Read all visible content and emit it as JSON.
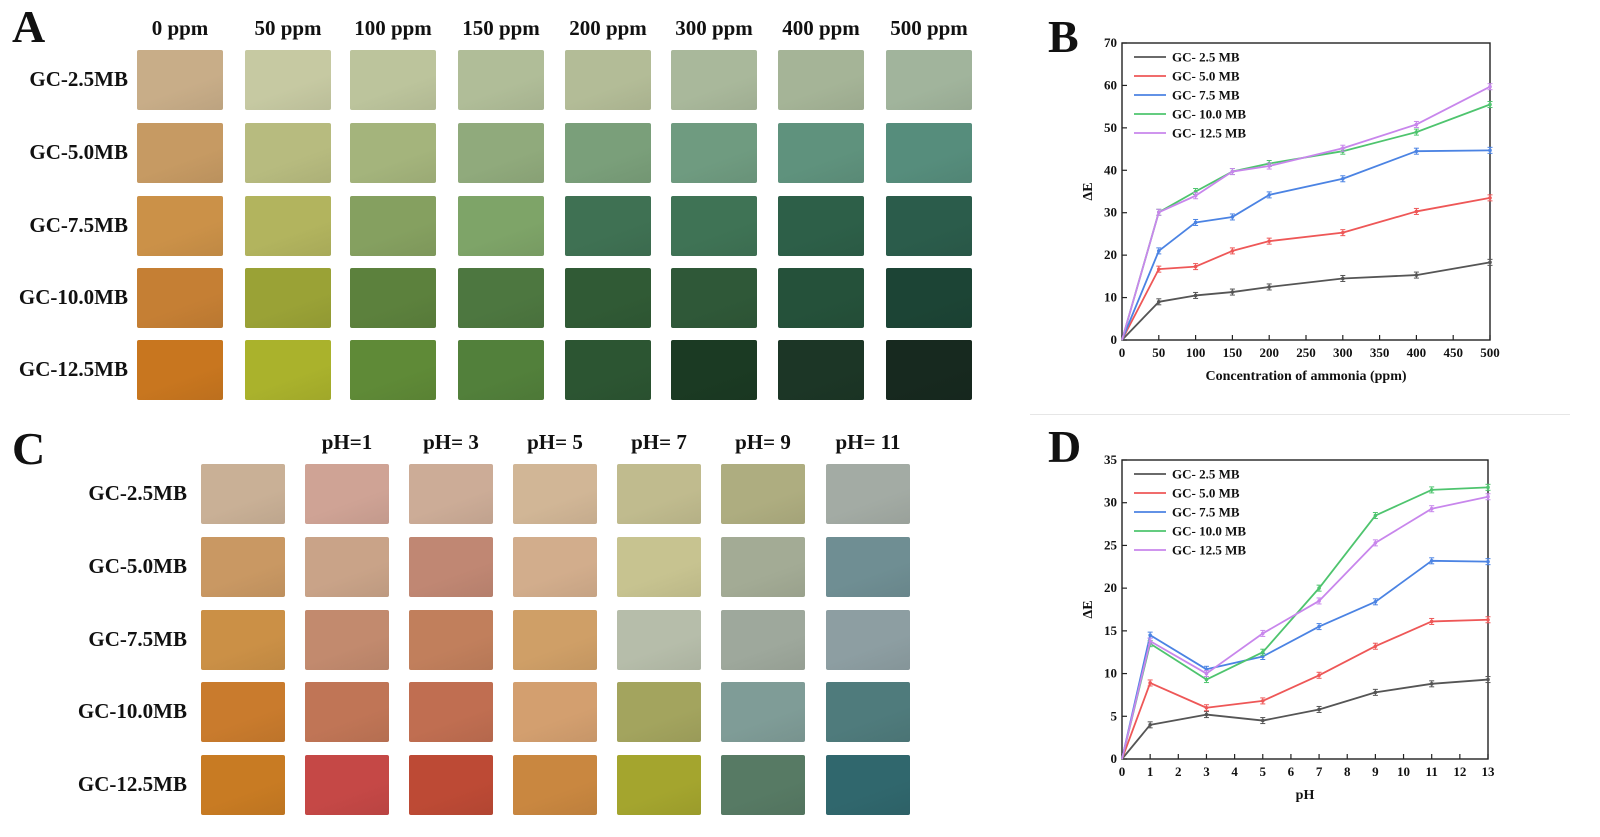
{
  "panelA": {
    "letter": "A",
    "columns": [
      "0 ppm",
      "50 ppm",
      "100 ppm",
      "150 ppm",
      "200 ppm",
      "300 ppm",
      "400 ppm",
      "500 ppm"
    ],
    "rows": [
      {
        "label": "GC-2.5MB",
        "colors": [
          "#c8ad88",
          "#c6c9a2",
          "#bcc49c",
          "#b0bd98",
          "#b3bc97",
          "#a9b89b",
          "#a5b497",
          "#a1b49c"
        ]
      },
      {
        "label": "GC-5.0MB",
        "colors": [
          "#c69a63",
          "#b7bb7f",
          "#a4b47c",
          "#90aa7c",
          "#7a9f7a",
          "#6f9b80",
          "#5f927d",
          "#568d7c"
        ]
      },
      {
        "label": "GC-7.5MB",
        "colors": [
          "#cb9148",
          "#b2b45e",
          "#85a060",
          "#7ea468",
          "#3f7153",
          "#3f7355",
          "#2d5f48",
          "#2b5c4b"
        ]
      },
      {
        "label": "GC-10.0MB",
        "colors": [
          "#c57f34",
          "#9aa236",
          "#5c813d",
          "#4d7740",
          "#305a35",
          "#2f5838",
          "#25513a",
          "#1c4435"
        ]
      },
      {
        "label": "GC-12.5MB",
        "colors": [
          "#c8761f",
          "#aab22c",
          "#5f8a37",
          "#52803b",
          "#2c5532",
          "#1b3a23",
          "#1c3626",
          "#17291f"
        ]
      }
    ]
  },
  "panelC": {
    "letter": "C",
    "columns": [
      "",
      "pH=1",
      "pH= 3",
      "pH= 5",
      "pH= 7",
      "pH= 9",
      "pH= 11"
    ],
    "rows": [
      {
        "label": "GC-2.5MB",
        "colors": [
          "#c9b096",
          "#cfa395",
          "#ccac97",
          "#d1b696",
          "#c0bb8e",
          "#aead80",
          "#a3aba4"
        ]
      },
      {
        "label": "GC-5.0MB",
        "colors": [
          "#c99863",
          "#c9a388",
          "#c08773",
          "#d2ad8c",
          "#c7c390",
          "#a3ab95",
          "#6f8e93"
        ]
      },
      {
        "label": "GC-7.5MB",
        "colors": [
          "#cb9046",
          "#c28a6e",
          "#c17f5c",
          "#cf9f67",
          "#b6bdaa",
          "#9ea89c",
          "#8d9ea2"
        ]
      },
      {
        "label": "GC-10.0MB",
        "colors": [
          "#c97b2d",
          "#c07556",
          "#c06e51",
          "#d39f6f",
          "#a3a45e",
          "#7f9c97",
          "#4f7b7c"
        ]
      },
      {
        "label": "GC-12.5MB",
        "colors": [
          "#c87b23",
          "#c54846",
          "#bd4a35",
          "#c98740",
          "#a4a52e",
          "#577a64",
          "#30676d"
        ]
      }
    ]
  },
  "chart_data": [
    {
      "panel": "B",
      "type": "line",
      "xlabel": "Concentration of ammonia (ppm)",
      "ylabel": "ΔE",
      "xlim": [
        0,
        500
      ],
      "ylim": [
        0,
        70
      ],
      "xticks": [
        0,
        50,
        100,
        150,
        200,
        250,
        300,
        350,
        400,
        450,
        500
      ],
      "yticks": [
        0,
        10,
        20,
        30,
        40,
        50,
        60,
        70
      ],
      "legend_position": "top-left",
      "x": [
        0,
        50,
        100,
        150,
        200,
        300,
        400,
        500
      ],
      "series": [
        {
          "name": "GC- 2.5 MB",
          "color": "#555555",
          "values": [
            0,
            9,
            10.5,
            11.3,
            12.5,
            14.5,
            15.3,
            18.3
          ]
        },
        {
          "name": "GC- 5.0 MB",
          "color": "#ee5757",
          "values": [
            0,
            16.7,
            17.3,
            21,
            23.3,
            25.3,
            30.3,
            33.5
          ]
        },
        {
          "name": "GC- 7.5 MB",
          "color": "#4b83e3",
          "values": [
            0,
            21,
            27.7,
            29,
            34.2,
            38,
            44.5,
            44.7
          ]
        },
        {
          "name": "GC- 10.0 MB",
          "color": "#4ec46e",
          "values": [
            0,
            30.1,
            35,
            39.7,
            41.6,
            44.5,
            49,
            55.5
          ]
        },
        {
          "name": "GC- 12.5 MB",
          "color": "#c886ec",
          "values": [
            0,
            30.1,
            34,
            39.7,
            41,
            45.2,
            50.8,
            59.7
          ]
        }
      ]
    },
    {
      "panel": "D",
      "type": "line",
      "xlabel": "pH",
      "ylabel": "ΔE",
      "xlim": [
        0,
        13
      ],
      "ylim": [
        0,
        35
      ],
      "xticks": [
        0,
        1,
        2,
        3,
        4,
        5,
        6,
        7,
        8,
        9,
        10,
        11,
        12,
        13
      ],
      "yticks": [
        0,
        5,
        10,
        15,
        20,
        25,
        30,
        35
      ],
      "legend_position": "top-left",
      "x": [
        0,
        1,
        3,
        5,
        7,
        9,
        11,
        13
      ],
      "series": [
        {
          "name": "GC- 2.5 MB",
          "color": "#555555",
          "values": [
            0,
            4,
            5.2,
            4.5,
            5.8,
            7.8,
            8.8,
            9.3
          ]
        },
        {
          "name": "GC- 5.0 MB",
          "color": "#ee5757",
          "values": [
            0,
            8.9,
            6,
            6.8,
            9.8,
            13.2,
            16.1,
            16.3
          ]
        },
        {
          "name": "GC- 7.5 MB",
          "color": "#4b83e3",
          "values": [
            0,
            14.5,
            10.5,
            12,
            15.5,
            18.4,
            23.2,
            23.1
          ]
        },
        {
          "name": "GC- 10.0 MB",
          "color": "#4ec46e",
          "values": [
            0,
            13.5,
            9.3,
            12.5,
            20,
            28.5,
            31.5,
            31.8
          ]
        },
        {
          "name": "GC- 12.5 MB",
          "color": "#c886ec",
          "values": [
            0,
            13.8,
            10,
            14.7,
            18.5,
            25.3,
            29.3,
            30.7
          ]
        }
      ]
    }
  ],
  "panelB_letter": "B",
  "panelD_letter": "D"
}
